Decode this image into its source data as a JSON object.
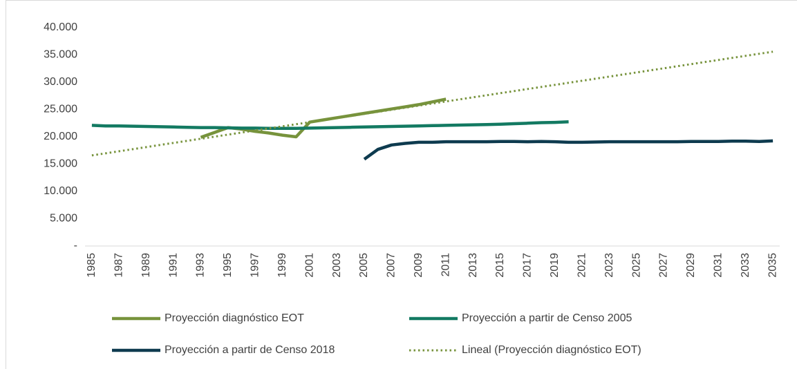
{
  "chart_data": {
    "type": "line",
    "x": [
      1985,
      1986,
      1987,
      1988,
      1989,
      1990,
      1991,
      1992,
      1993,
      1994,
      1995,
      1996,
      1997,
      1998,
      1999,
      2000,
      2001,
      2002,
      2003,
      2004,
      2005,
      2006,
      2007,
      2008,
      2009,
      2010,
      2011,
      2012,
      2013,
      2014,
      2015,
      2016,
      2017,
      2018,
      2019,
      2020,
      2021,
      2022,
      2023,
      2024,
      2025,
      2026,
      2027,
      2028,
      2029,
      2030,
      2031,
      2032,
      2033,
      2034,
      2035
    ],
    "xlim": [
      1984.5,
      2035.5
    ],
    "xticks": [
      1985,
      1987,
      1989,
      1991,
      1993,
      1995,
      1997,
      1999,
      2001,
      2003,
      2005,
      2007,
      2009,
      2011,
      2013,
      2015,
      2017,
      2019,
      2021,
      2023,
      2025,
      2027,
      2029,
      2031,
      2033,
      2035
    ],
    "ylim": [
      0,
      40000
    ],
    "yticks": [
      {
        "value": 0,
        "label": "-"
      },
      {
        "value": 5000,
        "label": "5.000"
      },
      {
        "value": 10000,
        "label": "10.000"
      },
      {
        "value": 15000,
        "label": "15.000"
      },
      {
        "value": 20000,
        "label": "20.000"
      },
      {
        "value": 25000,
        "label": "25.000"
      },
      {
        "value": 30000,
        "label": "30.000"
      },
      {
        "value": 35000,
        "label": "35.000"
      },
      {
        "value": 40000,
        "label": "40.000"
      }
    ],
    "series": [
      {
        "name": "Proyección diagnóstico EOT",
        "color": "#77933c",
        "style": "solid",
        "values": [
          null,
          null,
          null,
          null,
          null,
          null,
          null,
          null,
          19900,
          20800,
          21700,
          21400,
          21000,
          20700,
          20300,
          20000,
          22700,
          23100,
          23500,
          23900,
          24300,
          24700,
          25100,
          25500,
          25900,
          26400,
          26900,
          null,
          null,
          null,
          null,
          null,
          null,
          null,
          null,
          null,
          null,
          null,
          null,
          null,
          null,
          null,
          null,
          null,
          null,
          null,
          null,
          null,
          null,
          null,
          null
        ]
      },
      {
        "name": "Proyección a partir de Censo 2005",
        "color": "#137a62",
        "style": "solid",
        "values": [
          22100,
          22000,
          22000,
          21950,
          21900,
          21850,
          21800,
          21750,
          21700,
          21700,
          21650,
          21600,
          21600,
          21550,
          21550,
          21550,
          21600,
          21650,
          21700,
          21750,
          21800,
          21850,
          21900,
          21950,
          22000,
          22050,
          22100,
          22150,
          22200,
          22250,
          22300,
          22400,
          22500,
          22600,
          22650,
          22750,
          null,
          null,
          null,
          null,
          null,
          null,
          null,
          null,
          null,
          null,
          null,
          null,
          null,
          null,
          null
        ]
      },
      {
        "name": "Proyección a partir de Censo 2018",
        "color": "#0e3b4f",
        "style": "solid",
        "values": [
          null,
          null,
          null,
          null,
          null,
          null,
          null,
          null,
          null,
          null,
          null,
          null,
          null,
          null,
          null,
          null,
          null,
          null,
          null,
          null,
          15900,
          17700,
          18500,
          18800,
          19000,
          19000,
          19100,
          19100,
          19100,
          19100,
          19150,
          19150,
          19100,
          19150,
          19100,
          19000,
          19000,
          19050,
          19100,
          19100,
          19100,
          19100,
          19100,
          19100,
          19150,
          19150,
          19150,
          19200,
          19200,
          19150,
          19250
        ]
      },
      {
        "name": "Lineal (Proyección diagnóstico EOT)",
        "color": "#77933c",
        "style": "dotted",
        "values": [
          16600,
          16980,
          17360,
          17740,
          18120,
          18500,
          18880,
          19260,
          19640,
          20020,
          20400,
          20780,
          21160,
          21540,
          21920,
          22300,
          22680,
          23060,
          23440,
          23820,
          24200,
          24580,
          24960,
          25340,
          25720,
          26100,
          26480,
          26860,
          27240,
          27620,
          28000,
          28380,
          28760,
          29140,
          29520,
          29900,
          30280,
          30660,
          31040,
          31420,
          31800,
          32180,
          32560,
          32940,
          33320,
          33700,
          34080,
          34460,
          34840,
          35220,
          35600
        ]
      }
    ]
  }
}
